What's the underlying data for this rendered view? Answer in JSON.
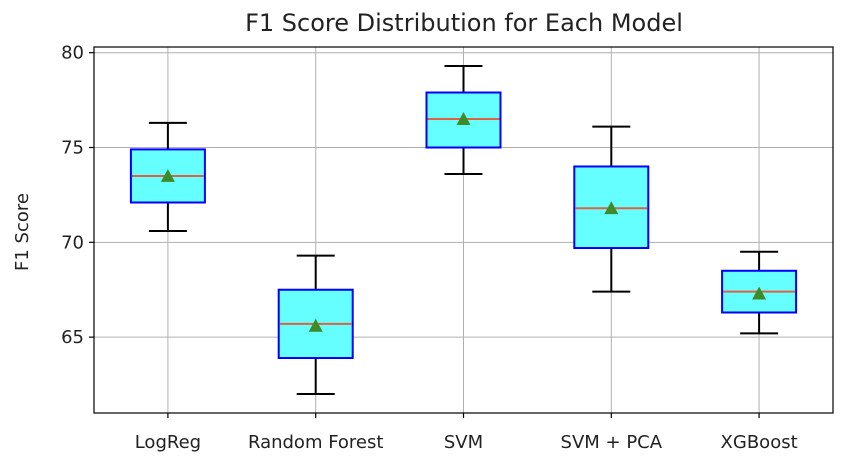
{
  "chart_data": {
    "type": "box",
    "title": "F1 Score Distribution for Each Model",
    "xlabel": "",
    "ylabel": "F1 Score",
    "ylim": [
      61,
      80.3
    ],
    "yticks": [
      65,
      70,
      75,
      80
    ],
    "grid": true,
    "categories": [
      "LogReg",
      "Random Forest",
      "SVM",
      "SVM + PCA",
      "XGBoost"
    ],
    "boxes": [
      {
        "whisker_low": 70.6,
        "q1": 72.1,
        "median": 73.5,
        "q3": 74.9,
        "whisker_high": 76.3,
        "mean": 73.5
      },
      {
        "whisker_low": 62.0,
        "q1": 63.9,
        "median": 65.7,
        "q3": 67.5,
        "whisker_high": 69.3,
        "mean": 65.6
      },
      {
        "whisker_low": 73.6,
        "q1": 75.0,
        "median": 76.5,
        "q3": 77.9,
        "whisker_high": 79.3,
        "mean": 76.5
      },
      {
        "whisker_low": 67.4,
        "q1": 69.7,
        "median": 71.8,
        "q3": 74.0,
        "whisker_high": 76.1,
        "mean": 71.8
      },
      {
        "whisker_low": 65.2,
        "q1": 66.3,
        "median": 67.4,
        "q3": 68.5,
        "whisker_high": 69.5,
        "mean": 67.3
      }
    ],
    "colors": {
      "box_fill": "#66ffff",
      "box_edge": "#0000ff",
      "median": "#e06040",
      "mean_marker": "#3c8c2a",
      "whisker": "#000000",
      "grid": "#b0b0b0"
    }
  }
}
